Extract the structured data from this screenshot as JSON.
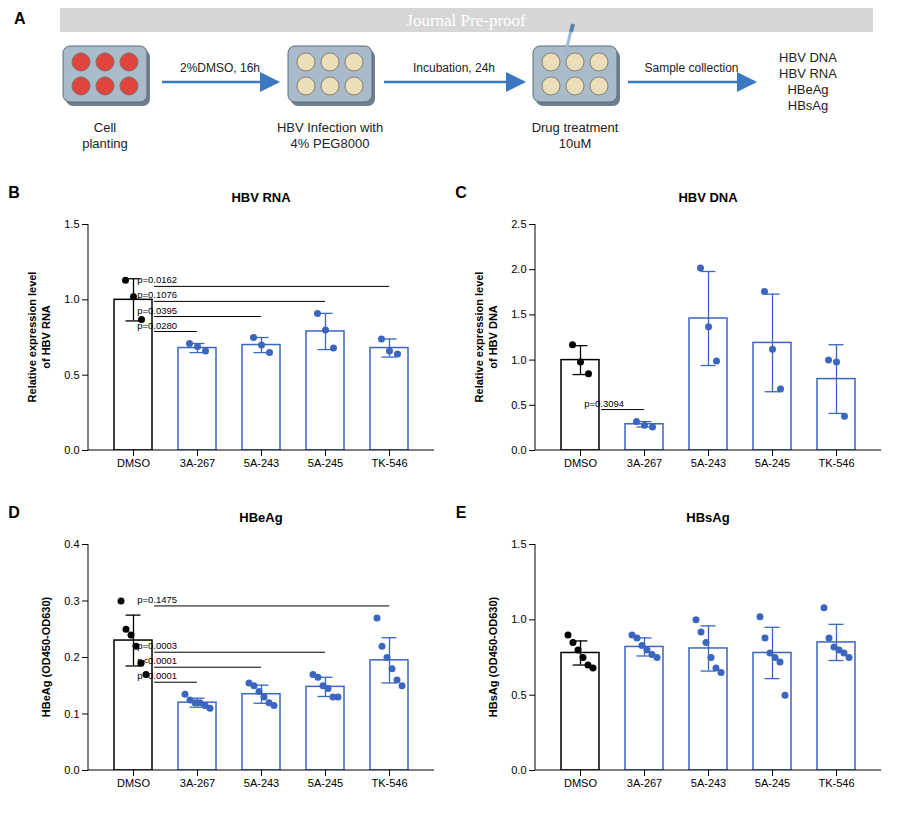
{
  "diagram": {
    "panel": "A",
    "banner": "Journal Pre-proof",
    "steps": [
      {
        "label": [
          "Cell",
          "planting"
        ]
      },
      {
        "label": [
          "HBV Infection with",
          "4% PEG8000"
        ]
      },
      {
        "label": [
          "Drug treatment",
          "10uM"
        ]
      }
    ],
    "arrows": [
      "2%DMSO, 16h",
      "Incubation, 24h",
      "Sample collection"
    ],
    "outputs": [
      "HBV DNA",
      "HBV RNA",
      "HBeAg",
      "HBsAg"
    ]
  },
  "chart_data": [
    {
      "panel": "B",
      "type": "bar",
      "title": "HBV RNA",
      "ylabel": [
        "Relative expression level",
        "of HBV RNA"
      ],
      "categories": [
        "DMSO",
        "3A-267",
        "5A-243",
        "5A-245",
        "TK-546"
      ],
      "values": [
        1.0,
        0.68,
        0.7,
        0.79,
        0.68
      ],
      "errors": [
        0.14,
        0.03,
        0.05,
        0.12,
        0.06
      ],
      "points": [
        [
          1.13,
          1.02,
          0.87
        ],
        [
          0.71,
          0.69,
          0.66
        ],
        [
          0.75,
          0.7,
          0.65
        ],
        [
          0.91,
          0.8,
          0.68
        ],
        [
          0.74,
          0.66,
          0.64
        ]
      ],
      "colors": [
        "#000000",
        "#3a66bf",
        "#3a66bf",
        "#3a66bf",
        "#3a66bf"
      ],
      "ylim": [
        0,
        1.5
      ],
      "yticks": [
        {
          "value": 0,
          "label": "0.0"
        },
        0.5,
        {
          "value": 1,
          "label": "1.0"
        },
        1.5
      ],
      "annotations": [
        {
          "from": "DMSO",
          "to": "3A-267",
          "label": "p=0.0280"
        },
        {
          "from": "DMSO",
          "to": "5A-243",
          "label": "p=0.0395"
        },
        {
          "from": "DMSO",
          "to": "5A-245",
          "label": "p=0.1076"
        },
        {
          "from": "DMSO",
          "to": "TK-546",
          "label": "p=0.0162"
        }
      ]
    },
    {
      "panel": "C",
      "type": "bar",
      "title": "HBV DNA",
      "ylabel": [
        "Relative expression level",
        "of HBV DNA"
      ],
      "categories": [
        "DMSO",
        "3A-267",
        "5A-243",
        "5A-245",
        "TK-546"
      ],
      "values": [
        1.0,
        0.29,
        1.46,
        1.19,
        0.79
      ],
      "errors": [
        0.16,
        0.03,
        0.52,
        0.54,
        0.38
      ],
      "points": [
        [
          1.17,
          0.98,
          0.85
        ],
        [
          0.32,
          0.28,
          0.26
        ],
        [
          2.02,
          1.37,
          0.99
        ],
        [
          1.76,
          1.12,
          0.68
        ],
        [
          1.0,
          0.98,
          0.38
        ]
      ],
      "colors": [
        "#000000",
        "#3a66bf",
        "#3a66bf",
        "#3a66bf",
        "#3a66bf"
      ],
      "ylim": [
        0,
        2.5
      ],
      "yticks": [
        {
          "value": 0,
          "label": "0.0"
        },
        0.5,
        {
          "value": 1,
          "label": "1.0"
        },
        1.5,
        {
          "value": 2,
          "label": "2.0"
        },
        2.5
      ],
      "annotations": [
        {
          "from": "DMSO",
          "to": "3A-267",
          "label": "p=0.3094"
        }
      ]
    },
    {
      "panel": "D",
      "type": "bar",
      "title": "HBeAg",
      "ylabel": [
        "HBeAg (OD450-OD630)"
      ],
      "categories": [
        "DMSO",
        "3A-267",
        "5A-243",
        "5A-245",
        "TK-546"
      ],
      "values": [
        0.23,
        0.12,
        0.135,
        0.148,
        0.195
      ],
      "errors": [
        0.045,
        0.008,
        0.016,
        0.017,
        0.04
      ],
      "points": [
        [
          0.3,
          0.25,
          0.24,
          0.22,
          0.19,
          0.17
        ],
        [
          0.135,
          0.125,
          0.12,
          0.12,
          0.115,
          0.11
        ],
        [
          0.155,
          0.15,
          0.14,
          0.13,
          0.12,
          0.115
        ],
        [
          0.17,
          0.165,
          0.15,
          0.145,
          0.13,
          0.13
        ],
        [
          0.27,
          0.22,
          0.2,
          0.18,
          0.16,
          0.15
        ]
      ],
      "colors": [
        "#000000",
        "#3a66bf",
        "#3a66bf",
        "#3a66bf",
        "#3a66bf"
      ],
      "ylim": [
        0,
        0.4
      ],
      "yticks": [
        {
          "value": 0,
          "label": "0.0"
        },
        0.1,
        0.2,
        0.3,
        0.4
      ],
      "annotations": [
        {
          "from": "DMSO",
          "to": "3A-267",
          "label": "p<0.0001"
        },
        {
          "from": "DMSO",
          "to": "5A-243",
          "label": "p<0.0001"
        },
        {
          "from": "DMSO",
          "to": "5A-245",
          "label": "p=0.0003"
        },
        {
          "from": "DMSO",
          "to": "TK-546",
          "label": "p=0.1475"
        }
      ]
    },
    {
      "panel": "E",
      "type": "bar",
      "title": "HBsAg",
      "ylabel": [
        "HBsAg (OD450-OD630)"
      ],
      "categories": [
        "DMSO",
        "3A-267",
        "5A-243",
        "5A-245",
        "TK-546"
      ],
      "values": [
        0.78,
        0.82,
        0.81,
        0.78,
        0.85
      ],
      "errors": [
        0.08,
        0.06,
        0.15,
        0.17,
        0.12
      ],
      "points": [
        [
          0.9,
          0.85,
          0.8,
          0.75,
          0.7,
          0.68
        ],
        [
          0.9,
          0.88,
          0.83,
          0.8,
          0.77,
          0.75
        ],
        [
          1.0,
          0.92,
          0.85,
          0.75,
          0.68,
          0.65
        ],
        [
          1.02,
          0.88,
          0.78,
          0.75,
          0.72,
          0.5
        ],
        [
          1.08,
          0.88,
          0.82,
          0.8,
          0.78,
          0.75
        ]
      ],
      "colors": [
        "#000000",
        "#3a66bf",
        "#3a66bf",
        "#3a66bf",
        "#3a66bf"
      ],
      "ylim": [
        0,
        1.5
      ],
      "yticks": [
        {
          "value": 0,
          "label": "0.0"
        },
        0.5,
        {
          "value": 1,
          "label": "1.0"
        },
        1.5
      ]
    }
  ]
}
